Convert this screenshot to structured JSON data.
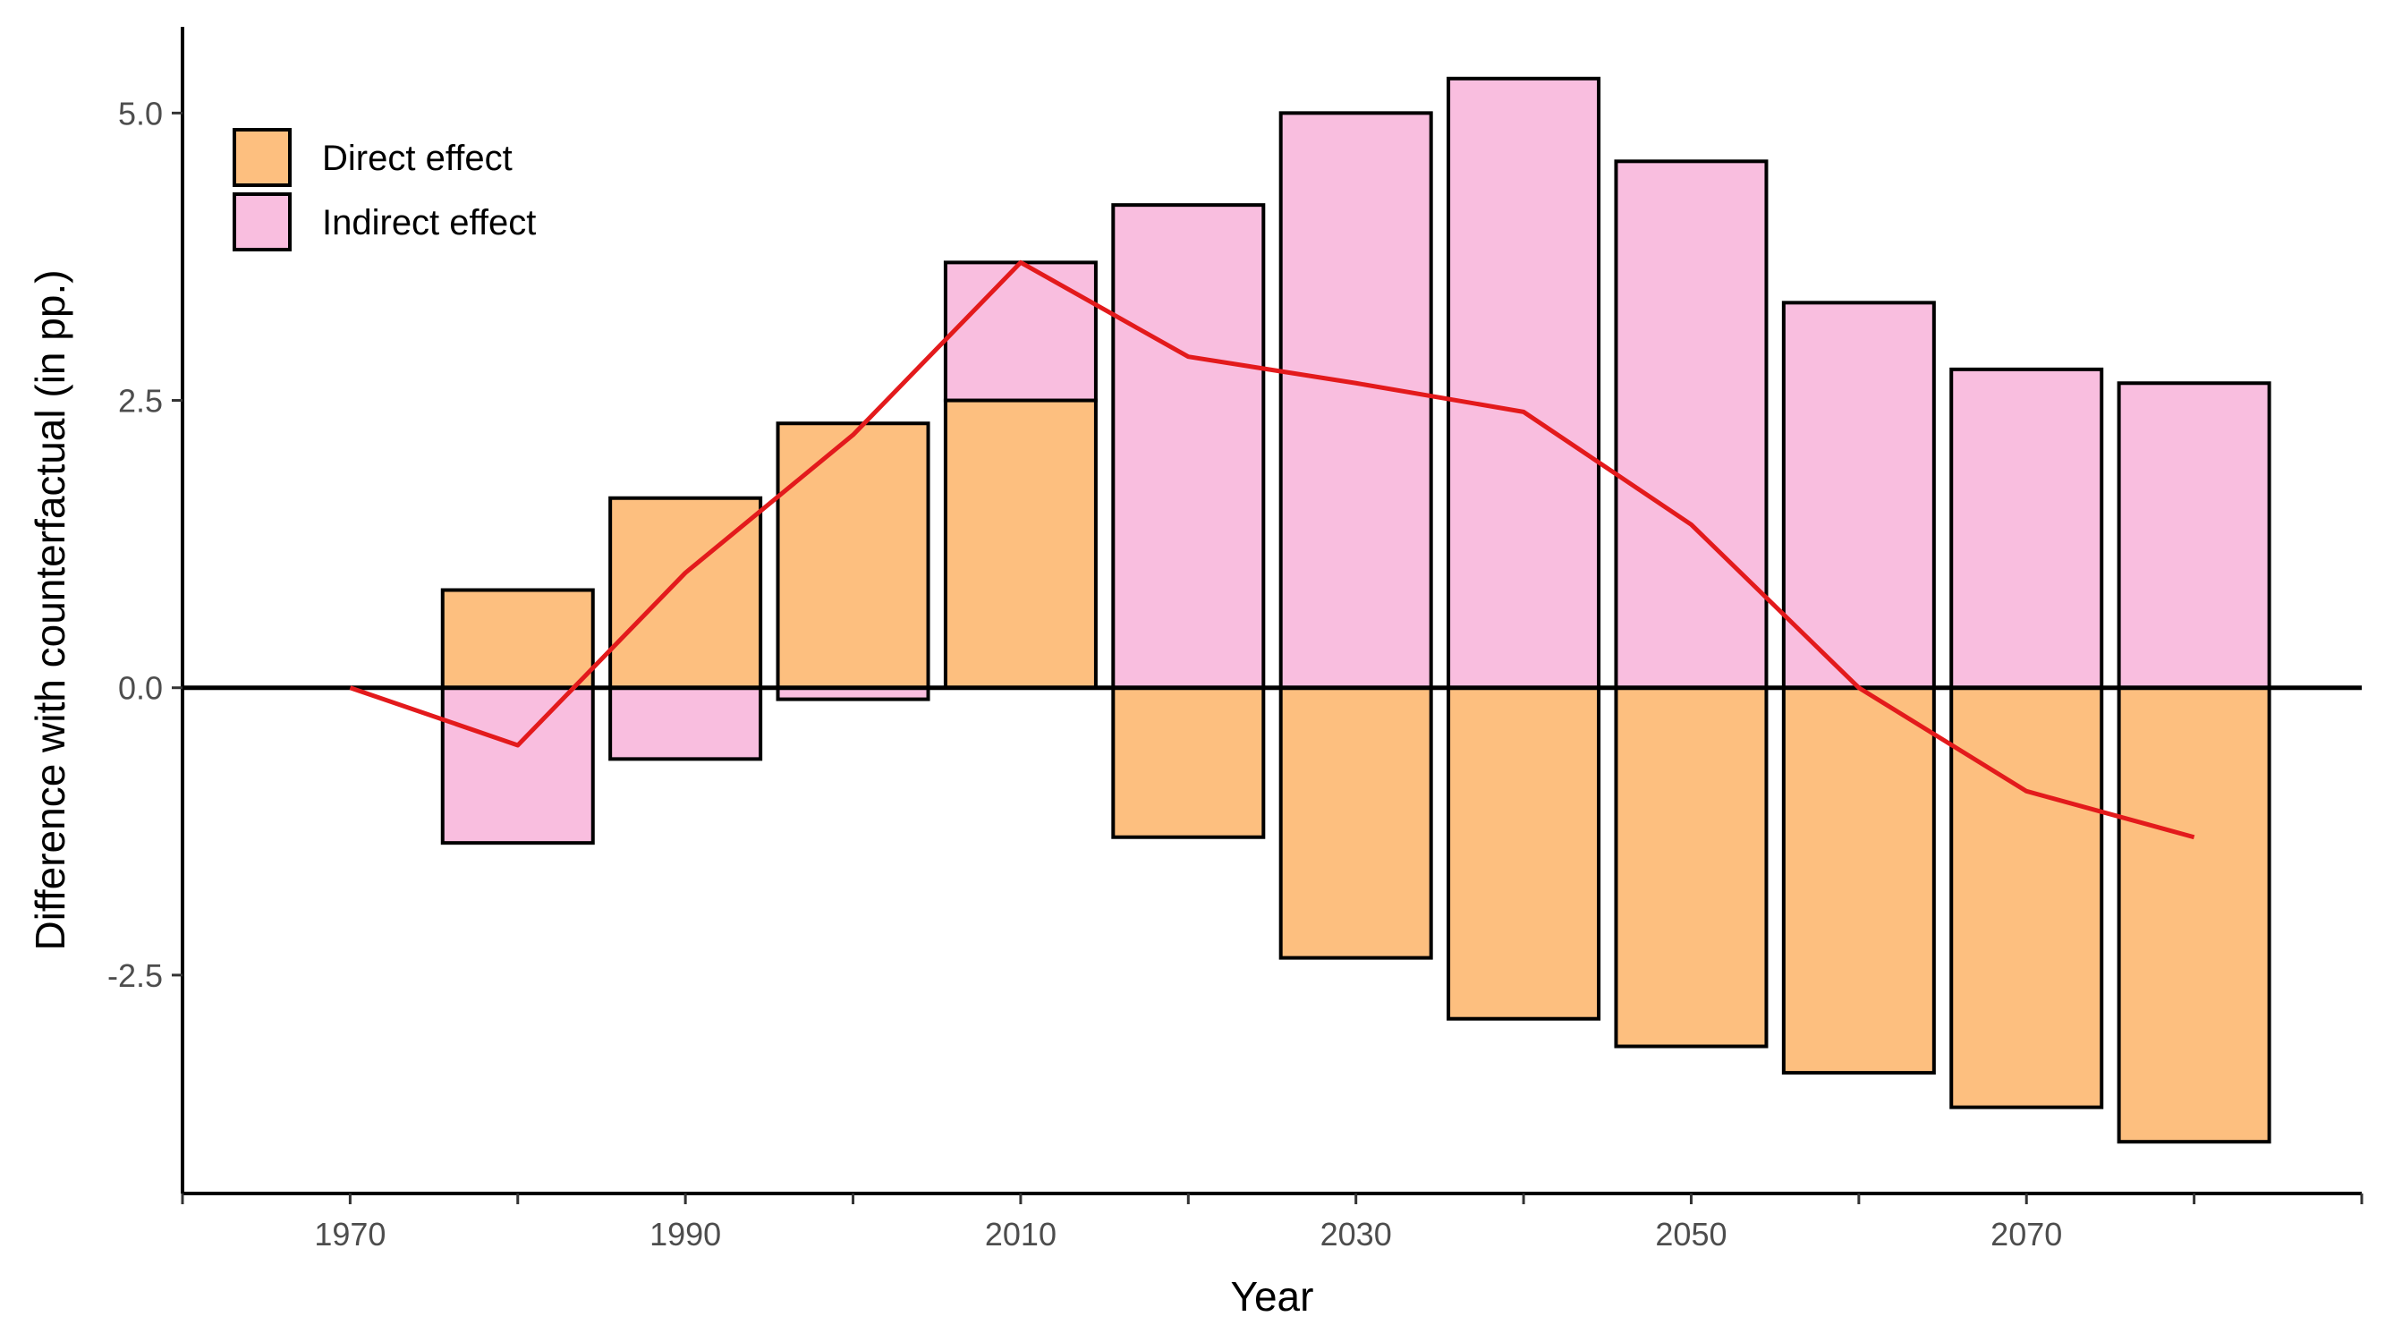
{
  "chart_data": {
    "type": "bar",
    "xlabel": "Year",
    "ylabel": "Difference with counterfactual (in pp.)",
    "x_ticks": [
      1970,
      1990,
      2010,
      2030,
      2050,
      2070
    ],
    "y_ticks": [
      "-2.5",
      "0.0",
      "2.5",
      "5.0"
    ],
    "xlim": [
      1960,
      2090
    ],
    "ylim": [
      -4.4,
      5.75
    ],
    "grid": false,
    "legend_position": "top-left",
    "categories": [
      1970,
      1980,
      1990,
      2000,
      2010,
      2020,
      2030,
      2040,
      2050,
      2060,
      2070,
      2080
    ],
    "series": [
      {
        "name": "Direct effect",
        "color": "#FDBF7F",
        "values": [
          0,
          0.85,
          1.65,
          2.3,
          2.5,
          -1.3,
          -2.35,
          -2.88,
          -3.12,
          -3.35,
          -3.65,
          -3.95
        ]
      },
      {
        "name": "Indirect effect",
        "color": "#F9BEDF",
        "values": [
          0,
          -1.35,
          -0.62,
          -0.1,
          1.2,
          4.2,
          5.0,
          5.3,
          4.58,
          3.35,
          2.77,
          2.65
        ]
      }
    ],
    "total_line": {
      "color": "#E31A1C",
      "values": [
        0,
        -0.5,
        1.0,
        2.2,
        3.7,
        2.88,
        2.65,
        2.4,
        1.42,
        0,
        -0.9,
        -1.3
      ]
    }
  }
}
